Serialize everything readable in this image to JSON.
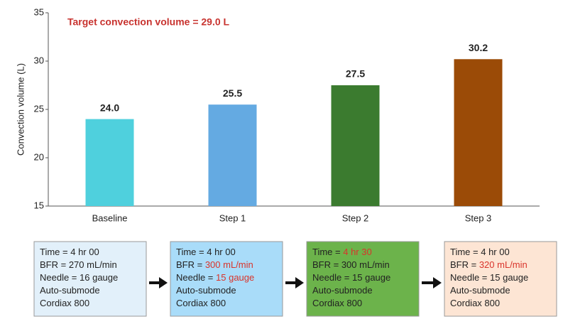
{
  "chart_data": {
    "type": "bar",
    "annotation": "Target convection volume = 29.0 L",
    "annotation_color": "#c8332f",
    "ylabel": "Convection volume (L)",
    "categories": [
      "Baseline",
      "Step 1",
      "Step 2",
      "Step 3"
    ],
    "values": [
      24.0,
      25.5,
      27.5,
      30.2
    ],
    "value_labels": [
      "24.0",
      "25.5",
      "27.5",
      "30.2"
    ],
    "colors": [
      "#4fd0dd",
      "#64aae2",
      "#3b7b2f",
      "#9b4b07"
    ],
    "ylim": [
      15,
      35
    ],
    "yticks": [
      15,
      20,
      25,
      30,
      35
    ],
    "grid": false
  },
  "steps": [
    {
      "fill": "#e2f0fa",
      "lines": [
        {
          "label": "Time = ",
          "value": "4 hr 00",
          "changed": false
        },
        {
          "label": "BFR = ",
          "value": "270 mL/min",
          "changed": false
        },
        {
          "label": "Needle = ",
          "value": "16 gauge",
          "changed": false
        },
        {
          "label": "Auto-submode"
        },
        {
          "label": "Cordiax 800"
        }
      ]
    },
    {
      "fill": "#a9dcf9",
      "lines": [
        {
          "label": "Time = ",
          "value": "4 hr 00",
          "changed": false
        },
        {
          "label": "BFR = ",
          "value": "300 mL/min",
          "changed": true
        },
        {
          "label": "Needle = ",
          "value": "15 gauge",
          "changed": true
        },
        {
          "label": "Auto-submode"
        },
        {
          "label": "Cordiax 800"
        }
      ]
    },
    {
      "fill": "#6cb34b",
      "lines": [
        {
          "label": "Time = ",
          "value": "4 hr 30",
          "changed": true
        },
        {
          "label": "BFR = ",
          "value": "300 mL/min",
          "changed": false
        },
        {
          "label": "Needle = ",
          "value": "15 gauge",
          "changed": false
        },
        {
          "label": "Auto-submode"
        },
        {
          "label": "Cordiax 800"
        }
      ]
    },
    {
      "fill": "#fde5d4",
      "lines": [
        {
          "label": "Time = ",
          "value": "4 hr 00",
          "changed": false
        },
        {
          "label": "BFR = ",
          "value": "320 mL/min",
          "changed": true
        },
        {
          "label": "Needle = ",
          "value": "15 gauge",
          "changed": false
        },
        {
          "label": "Auto-submode"
        },
        {
          "label": "Cordiax 800"
        }
      ]
    }
  ],
  "highlight_color": "#d9342b"
}
